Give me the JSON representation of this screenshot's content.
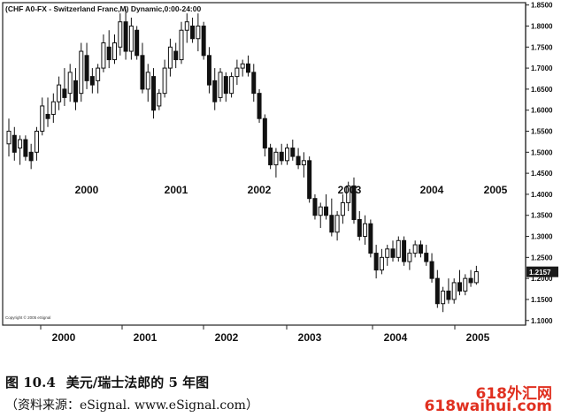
{
  "chart_data": {
    "type": "candlestick",
    "title": "(CHF A0-FX - Switzerland Franc,M) Dynamic,0:00-24:00",
    "xlabel": "",
    "ylabel": "",
    "ylim": [
      1.09,
      1.86
    ],
    "yticks": [
      "1.8500",
      "1.8000",
      "1.7500",
      "1.7000",
      "1.6500",
      "1.6000",
      "1.5500",
      "1.5000",
      "1.4500",
      "1.4000",
      "1.3500",
      "1.3000",
      "1.2500",
      "1.2000",
      "1.1500",
      "1.1000"
    ],
    "ytick_values": [
      1.85,
      1.8,
      1.75,
      1.7,
      1.65,
      1.6,
      1.55,
      1.5,
      1.45,
      1.4,
      1.35,
      1.3,
      1.25,
      1.2,
      1.15,
      1.1
    ],
    "last_price_label": "1.2157",
    "last_price": 1.2157,
    "year_labels_in_plot": [
      "2000",
      "2001",
      "2002",
      "2003",
      "2004",
      "2005"
    ],
    "x_axis_years": [
      "2000",
      "2001",
      "2002",
      "2003",
      "2004",
      "2005"
    ],
    "grid": false,
    "copyright": "Copyright © 2005 eSignal",
    "candles": [
      {
        "o": 1.52,
        "h": 1.58,
        "l": 1.49,
        "c": 1.55
      },
      {
        "o": 1.54,
        "h": 1.56,
        "l": 1.48,
        "c": 1.5
      },
      {
        "o": 1.51,
        "h": 1.54,
        "l": 1.47,
        "c": 1.53
      },
      {
        "o": 1.53,
        "h": 1.54,
        "l": 1.48,
        "c": 1.49
      },
      {
        "o": 1.5,
        "h": 1.52,
        "l": 1.46,
        "c": 1.48
      },
      {
        "o": 1.5,
        "h": 1.56,
        "l": 1.48,
        "c": 1.55
      },
      {
        "o": 1.55,
        "h": 1.63,
        "l": 1.54,
        "c": 1.61
      },
      {
        "o": 1.59,
        "h": 1.63,
        "l": 1.56,
        "c": 1.58
      },
      {
        "o": 1.59,
        "h": 1.64,
        "l": 1.57,
        "c": 1.62
      },
      {
        "o": 1.62,
        "h": 1.68,
        "l": 1.6,
        "c": 1.66
      },
      {
        "o": 1.65,
        "h": 1.7,
        "l": 1.61,
        "c": 1.63
      },
      {
        "o": 1.64,
        "h": 1.71,
        "l": 1.62,
        "c": 1.69
      },
      {
        "o": 1.67,
        "h": 1.7,
        "l": 1.6,
        "c": 1.62
      },
      {
        "o": 1.64,
        "h": 1.76,
        "l": 1.62,
        "c": 1.74
      },
      {
        "o": 1.73,
        "h": 1.76,
        "l": 1.65,
        "c": 1.67
      },
      {
        "o": 1.68,
        "h": 1.7,
        "l": 1.64,
        "c": 1.66
      },
      {
        "o": 1.67,
        "h": 1.71,
        "l": 1.64,
        "c": 1.7
      },
      {
        "o": 1.7,
        "h": 1.78,
        "l": 1.69,
        "c": 1.76
      },
      {
        "o": 1.75,
        "h": 1.79,
        "l": 1.7,
        "c": 1.72
      },
      {
        "o": 1.72,
        "h": 1.78,
        "l": 1.71,
        "c": 1.76
      },
      {
        "o": 1.75,
        "h": 1.83,
        "l": 1.73,
        "c": 1.81
      },
      {
        "o": 1.81,
        "h": 1.84,
        "l": 1.72,
        "c": 1.74
      },
      {
        "o": 1.74,
        "h": 1.82,
        "l": 1.72,
        "c": 1.8
      },
      {
        "o": 1.79,
        "h": 1.8,
        "l": 1.72,
        "c": 1.73
      },
      {
        "o": 1.73,
        "h": 1.76,
        "l": 1.64,
        "c": 1.65
      },
      {
        "o": 1.65,
        "h": 1.71,
        "l": 1.62,
        "c": 1.69
      },
      {
        "o": 1.68,
        "h": 1.7,
        "l": 1.58,
        "c": 1.6
      },
      {
        "o": 1.61,
        "h": 1.65,
        "l": 1.6,
        "c": 1.64
      },
      {
        "o": 1.64,
        "h": 1.72,
        "l": 1.63,
        "c": 1.7
      },
      {
        "o": 1.7,
        "h": 1.77,
        "l": 1.68,
        "c": 1.75
      },
      {
        "o": 1.74,
        "h": 1.76,
        "l": 1.7,
        "c": 1.72
      },
      {
        "o": 1.72,
        "h": 1.81,
        "l": 1.71,
        "c": 1.79
      },
      {
        "o": 1.79,
        "h": 1.83,
        "l": 1.76,
        "c": 1.81
      },
      {
        "o": 1.8,
        "h": 1.82,
        "l": 1.76,
        "c": 1.77
      },
      {
        "o": 1.77,
        "h": 1.83,
        "l": 1.74,
        "c": 1.8
      },
      {
        "o": 1.8,
        "h": 1.81,
        "l": 1.72,
        "c": 1.73
      },
      {
        "o": 1.73,
        "h": 1.75,
        "l": 1.64,
        "c": 1.66
      },
      {
        "o": 1.67,
        "h": 1.7,
        "l": 1.6,
        "c": 1.62
      },
      {
        "o": 1.63,
        "h": 1.7,
        "l": 1.62,
        "c": 1.69
      },
      {
        "o": 1.68,
        "h": 1.69,
        "l": 1.62,
        "c": 1.64
      },
      {
        "o": 1.64,
        "h": 1.69,
        "l": 1.63,
        "c": 1.68
      },
      {
        "o": 1.68,
        "h": 1.72,
        "l": 1.66,
        "c": 1.7
      },
      {
        "o": 1.7,
        "h": 1.72,
        "l": 1.68,
        "c": 1.71
      },
      {
        "o": 1.71,
        "h": 1.73,
        "l": 1.68,
        "c": 1.69
      },
      {
        "o": 1.69,
        "h": 1.71,
        "l": 1.62,
        "c": 1.64
      },
      {
        "o": 1.64,
        "h": 1.65,
        "l": 1.57,
        "c": 1.58
      },
      {
        "o": 1.58,
        "h": 1.59,
        "l": 1.49,
        "c": 1.51
      },
      {
        "o": 1.51,
        "h": 1.52,
        "l": 1.46,
        "c": 1.47
      },
      {
        "o": 1.47,
        "h": 1.51,
        "l": 1.44,
        "c": 1.5
      },
      {
        "o": 1.5,
        "h": 1.52,
        "l": 1.47,
        "c": 1.48
      },
      {
        "o": 1.48,
        "h": 1.52,
        "l": 1.47,
        "c": 1.51
      },
      {
        "o": 1.51,
        "h": 1.53,
        "l": 1.48,
        "c": 1.49
      },
      {
        "o": 1.49,
        "h": 1.51,
        "l": 1.46,
        "c": 1.47
      },
      {
        "o": 1.47,
        "h": 1.5,
        "l": 1.44,
        "c": 1.48
      },
      {
        "o": 1.48,
        "h": 1.49,
        "l": 1.38,
        "c": 1.39
      },
      {
        "o": 1.39,
        "h": 1.4,
        "l": 1.34,
        "c": 1.35
      },
      {
        "o": 1.35,
        "h": 1.38,
        "l": 1.32,
        "c": 1.37
      },
      {
        "o": 1.37,
        "h": 1.4,
        "l": 1.34,
        "c": 1.35
      },
      {
        "o": 1.35,
        "h": 1.39,
        "l": 1.3,
        "c": 1.31
      },
      {
        "o": 1.31,
        "h": 1.36,
        "l": 1.29,
        "c": 1.35
      },
      {
        "o": 1.35,
        "h": 1.4,
        "l": 1.33,
        "c": 1.38
      },
      {
        "o": 1.38,
        "h": 1.43,
        "l": 1.36,
        "c": 1.42
      },
      {
        "o": 1.42,
        "h": 1.44,
        "l": 1.33,
        "c": 1.34
      },
      {
        "o": 1.34,
        "h": 1.36,
        "l": 1.29,
        "c": 1.3
      },
      {
        "o": 1.3,
        "h": 1.35,
        "l": 1.28,
        "c": 1.33
      },
      {
        "o": 1.33,
        "h": 1.34,
        "l": 1.25,
        "c": 1.26
      },
      {
        "o": 1.26,
        "h": 1.28,
        "l": 1.2,
        "c": 1.22
      },
      {
        "o": 1.22,
        "h": 1.27,
        "l": 1.21,
        "c": 1.25
      },
      {
        "o": 1.25,
        "h": 1.28,
        "l": 1.23,
        "c": 1.27
      },
      {
        "o": 1.27,
        "h": 1.29,
        "l": 1.24,
        "c": 1.25
      },
      {
        "o": 1.25,
        "h": 1.3,
        "l": 1.24,
        "c": 1.29
      },
      {
        "o": 1.29,
        "h": 1.3,
        "l": 1.23,
        "c": 1.24
      },
      {
        "o": 1.24,
        "h": 1.27,
        "l": 1.22,
        "c": 1.26
      },
      {
        "o": 1.26,
        "h": 1.29,
        "l": 1.25,
        "c": 1.28
      },
      {
        "o": 1.28,
        "h": 1.29,
        "l": 1.25,
        "c": 1.26
      },
      {
        "o": 1.26,
        "h": 1.28,
        "l": 1.23,
        "c": 1.24
      },
      {
        "o": 1.24,
        "h": 1.26,
        "l": 1.19,
        "c": 1.2
      },
      {
        "o": 1.2,
        "h": 1.22,
        "l": 1.13,
        "c": 1.14
      },
      {
        "o": 1.14,
        "h": 1.18,
        "l": 1.12,
        "c": 1.17
      },
      {
        "o": 1.17,
        "h": 1.2,
        "l": 1.14,
        "c": 1.15
      },
      {
        "o": 1.15,
        "h": 1.2,
        "l": 1.14,
        "c": 1.19
      },
      {
        "o": 1.19,
        "h": 1.22,
        "l": 1.16,
        "c": 1.17
      },
      {
        "o": 1.17,
        "h": 1.21,
        "l": 1.16,
        "c": 1.2
      },
      {
        "o": 1.2,
        "h": 1.22,
        "l": 1.18,
        "c": 1.19
      },
      {
        "o": 1.19,
        "h": 1.23,
        "l": 1.185,
        "c": 1.216
      }
    ]
  },
  "caption": {
    "figure_number": "图 10.4",
    "figure_title": "美元/瑞士法郎的 5 年图",
    "source": "（资料来源：eSignal. www.eSignal.com）"
  },
  "watermark": {
    "line1": "618外汇网",
    "line2": "618waihui.com"
  }
}
